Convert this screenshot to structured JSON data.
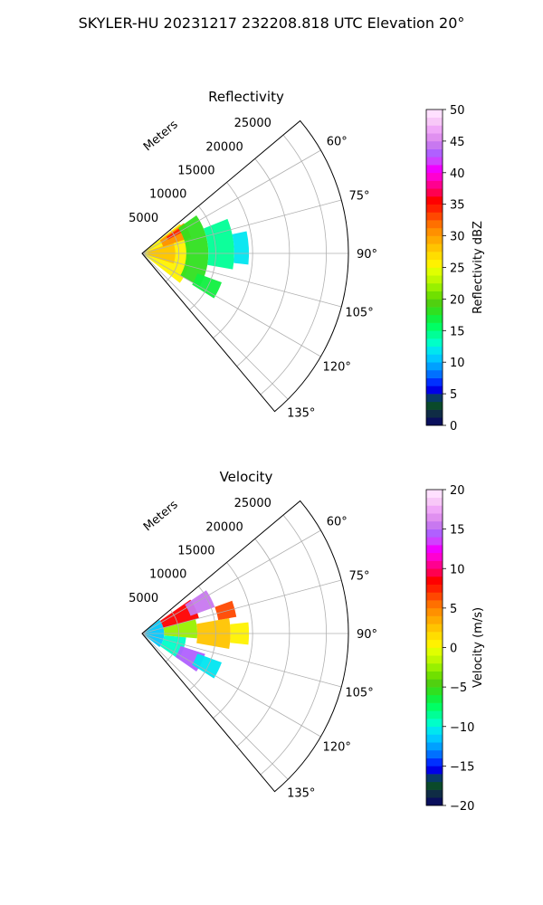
{
  "figure": {
    "suptitle": "SKYLER-HU  20231217  232208.818 UTC Elevation 20°"
  },
  "chart_data": [
    {
      "type": "heatmap",
      "subtype": "polar-sector-ppi",
      "title": "Reflectivity",
      "radial_axis_label": "Meters",
      "radial_ticks": [
        5000,
        10000,
        15000,
        20000,
        25000
      ],
      "radial_tick_labels": [
        "5000",
        "10000",
        "15000",
        "20000",
        "25000"
      ],
      "rmax": 28000,
      "theta_min_deg": 50,
      "theta_max_deg": 140,
      "theta_ticks": [
        60,
        75,
        90,
        105,
        120,
        135
      ],
      "theta_tick_labels": [
        "60°",
        "75°",
        "90°",
        "105°",
        "120°",
        "135°"
      ],
      "grid": true,
      "colorbar": {
        "label": "Reflectivity dBZ",
        "min": 0,
        "max": 50,
        "ticks": [
          0,
          5,
          10,
          15,
          20,
          25,
          30,
          35,
          40,
          45,
          50
        ],
        "tick_labels": [
          "0",
          "5",
          "10",
          "15",
          "20",
          "25",
          "30",
          "35",
          "40",
          "45",
          "50"
        ],
        "colors": [
          "#0a0f5c",
          "#0f2c45",
          "#0a4a2a",
          "#083a6a",
          "#0000e6",
          "#0030ff",
          "#0070ff",
          "#00a0ff",
          "#00c8ff",
          "#00e6f0",
          "#00ffc8",
          "#00ff96",
          "#00ff64",
          "#10f040",
          "#30e020",
          "#50d010",
          "#70e000",
          "#98f000",
          "#c0f800",
          "#e0ff00",
          "#fff200",
          "#ffdd00",
          "#ffc400",
          "#ffaa00",
          "#ff9000",
          "#ff7000",
          "#ff4800",
          "#ff2000",
          "#ff0000",
          "#ff0050",
          "#ff0090",
          "#ff00d0",
          "#f000ff",
          "#d040ff",
          "#b060ff",
          "#c878f0",
          "#e090f0",
          "#f0a8f8",
          "#f8c8f8",
          "#ffe0ff"
        ]
      },
      "echo_regions": [
        {
          "r0": 0,
          "r1": 6500,
          "t0": 52,
          "t1": 128,
          "value": 26
        },
        {
          "r0": 800,
          "r1": 4500,
          "t0": 70,
          "t1": 108,
          "value": 28
        },
        {
          "r0": 3000,
          "r1": 7000,
          "t0": 54,
          "t1": 72,
          "value": 30
        },
        {
          "r0": 4000,
          "r1": 6000,
          "t0": 56,
          "t1": 62,
          "value": 34
        },
        {
          "r0": 6000,
          "r1": 9000,
          "t0": 55,
          "t1": 120,
          "value": 18
        },
        {
          "r0": 9000,
          "r1": 12500,
          "t0": 68,
          "t1": 100,
          "value": 14
        },
        {
          "r0": 12500,
          "r1": 14500,
          "t0": 78,
          "t1": 96,
          "value": 12
        },
        {
          "r0": 8000,
          "r1": 11500,
          "t0": 110,
          "t1": 122,
          "value": 17
        }
      ]
    },
    {
      "type": "heatmap",
      "subtype": "polar-sector-ppi",
      "title": "Velocity",
      "radial_axis_label": "Meters",
      "radial_ticks": [
        5000,
        10000,
        15000,
        20000,
        25000
      ],
      "radial_tick_labels": [
        "5000",
        "10000",
        "15000",
        "20000",
        "25000"
      ],
      "rmax": 28000,
      "theta_min_deg": 50,
      "theta_max_deg": 140,
      "theta_ticks": [
        60,
        75,
        90,
        105,
        120,
        135
      ],
      "theta_tick_labels": [
        "60°",
        "75°",
        "90°",
        "105°",
        "120°",
        "135°"
      ],
      "grid": true,
      "colorbar": {
        "label": "Velocity (m/s)",
        "min": -20,
        "max": 20,
        "ticks": [
          -20,
          -15,
          -10,
          -5,
          0,
          5,
          10,
          15,
          20
        ],
        "tick_labels": [
          "−20",
          "−15",
          "−10",
          "−5",
          "0",
          "5",
          "10",
          "15",
          "20"
        ],
        "colors": [
          "#0a0f5c",
          "#0f2c45",
          "#0a4a2a",
          "#083a6a",
          "#0000e6",
          "#0030ff",
          "#0070ff",
          "#00a0ff",
          "#00c8ff",
          "#00e6f0",
          "#00ffc8",
          "#00ff96",
          "#00ff64",
          "#10f040",
          "#30e020",
          "#50d010",
          "#70e000",
          "#98f000",
          "#c0f800",
          "#e0ff00",
          "#fff200",
          "#ffdd00",
          "#ffc400",
          "#ffaa00",
          "#ff9000",
          "#ff7000",
          "#ff4800",
          "#ff2000",
          "#ff0000",
          "#ff0050",
          "#ff0090",
          "#ff00d0",
          "#f000ff",
          "#d040ff",
          "#b060ff",
          "#c878f0",
          "#e090f0",
          "#f0a8f8",
          "#f8c8f8",
          "#ffe0ff"
        ]
      },
      "echo_regions": [
        {
          "r0": 0,
          "r1": 3000,
          "t0": 52,
          "t1": 128,
          "value": -12
        },
        {
          "r0": 3000,
          "r1": 6000,
          "t0": 95,
          "t1": 125,
          "value": -10
        },
        {
          "r0": 5500,
          "r1": 9000,
          "t0": 108,
          "t1": 125,
          "value": 14
        },
        {
          "r0": 3000,
          "r1": 7500,
          "t0": 75,
          "t1": 95,
          "value": -3
        },
        {
          "r0": 7500,
          "r1": 12000,
          "t0": 80,
          "t1": 100,
          "value": 2
        },
        {
          "r0": 12000,
          "r1": 14500,
          "t0": 84,
          "t1": 96,
          "value": 0
        },
        {
          "r0": 3000,
          "r1": 8000,
          "t0": 55,
          "t1": 75,
          "value": 8
        },
        {
          "r0": 7000,
          "r1": 10500,
          "t0": 56,
          "t1": 70,
          "value": 15
        },
        {
          "r0": 10500,
          "r1": 13000,
          "t0": 70,
          "t1": 80,
          "value": 6
        },
        {
          "r0": 8000,
          "r1": 11500,
          "t0": 110,
          "t1": 122,
          "value": -11
        }
      ]
    }
  ]
}
